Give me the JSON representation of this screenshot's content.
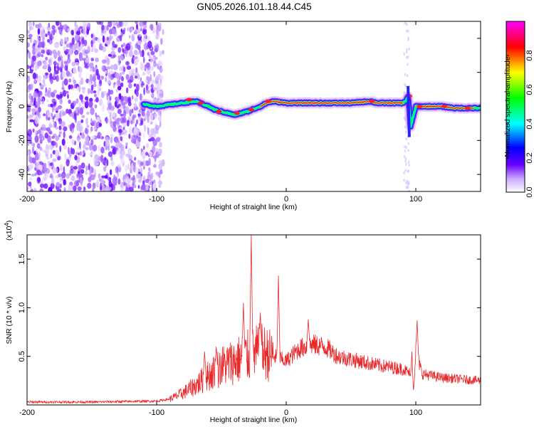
{
  "title": "GN05.2026.101.18.44.C45",
  "chart_data": [
    {
      "type": "heatmap",
      "xlabel": "Height of straight line (km)",
      "ylabel": "Frequency (Hz)",
      "xlim": [
        -200,
        150
      ],
      "ylim": [
        -50,
        50
      ],
      "xticks": [
        "-200",
        "-100",
        "0",
        "100"
      ],
      "xtick_values": [
        -200,
        -100,
        0,
        100
      ],
      "yticks": [
        "-40",
        "-20",
        "0",
        "20",
        "40"
      ],
      "ytick_values": [
        -40,
        -20,
        0,
        20,
        40
      ],
      "colorbar": {
        "label": "Normalized spectral amplitude",
        "range": [
          0,
          1
        ],
        "ticks": [
          "0.0",
          "0.2",
          "0.4",
          "0.6",
          "0.8"
        ],
        "tick_values": [
          0.0,
          0.2,
          0.4,
          0.6,
          0.8
        ],
        "colormap": [
          "#ffffff",
          "#6a00ff",
          "#0000ff",
          "#00ffff",
          "#00ff00",
          "#ffff00",
          "#ff0000",
          "#ff00ff"
        ]
      },
      "ridge": {
        "x": [
          -108,
          -100,
          -90,
          -80,
          -70,
          -60,
          -55,
          -50,
          -45,
          -40,
          -30,
          -20,
          -15,
          -10,
          0,
          10,
          30,
          50,
          65,
          70,
          80,
          90,
          92,
          94,
          95,
          96,
          100,
          110,
          120,
          130,
          140,
          150
        ],
        "y": [
          1,
          0,
          1,
          2,
          3,
          0,
          -2,
          -3,
          -4,
          -5,
          -3,
          0,
          2,
          3,
          2,
          2,
          2,
          2,
          3,
          2,
          2,
          2,
          3,
          6,
          -2,
          -12,
          0,
          0,
          0,
          -1,
          -1,
          -1
        ]
      },
      "noise_region": [
        -200,
        -95
      ]
    },
    {
      "type": "line",
      "xlabel": "Height of straight line (km)",
      "ylabel": "SNR (10 * v/v)",
      "y_multiplier": "(x10",
      "y_multiplier_exp": "4",
      "y_multiplier_close": ")",
      "xlim": [
        -200,
        150
      ],
      "ylim": [
        0,
        1.75
      ],
      "xticks": [
        "-200",
        "-100",
        "0",
        "100"
      ],
      "xtick_values": [
        -200,
        -100,
        0,
        100
      ],
      "yticks": [
        "0.5",
        "1.0",
        "1.5"
      ],
      "ytick_values": [
        0.5,
        1.0,
        1.5
      ],
      "line_color": "#e8282a",
      "envelope": {
        "x": [
          -200,
          -150,
          -100,
          -90,
          -80,
          -70,
          -60,
          -50,
          -40,
          -30,
          -20,
          -10,
          0,
          10,
          20,
          30,
          40,
          50,
          60,
          70,
          80,
          90,
          95,
          98,
          100,
          105,
          120,
          150
        ],
        "y": [
          0.03,
          0.03,
          0.04,
          0.06,
          0.12,
          0.2,
          0.3,
          0.4,
          0.45,
          0.5,
          0.55,
          0.5,
          0.45,
          0.58,
          0.62,
          0.6,
          0.5,
          0.47,
          0.44,
          0.41,
          0.39,
          0.37,
          0.33,
          0.1,
          0.55,
          0.32,
          0.28,
          0.25
        ]
      },
      "spikes": [
        {
          "x": -63,
          "y": 0.55
        },
        {
          "x": -54,
          "y": 0.6
        },
        {
          "x": -33,
          "y": 1.05
        },
        {
          "x": -27,
          "y": 1.75
        },
        {
          "x": -20,
          "y": 0.95
        },
        {
          "x": -6,
          "y": 1.33
        },
        {
          "x": 17,
          "y": 0.88
        },
        {
          "x": 97,
          "y": 0.55
        },
        {
          "x": 101,
          "y": 0.87
        }
      ]
    }
  ]
}
